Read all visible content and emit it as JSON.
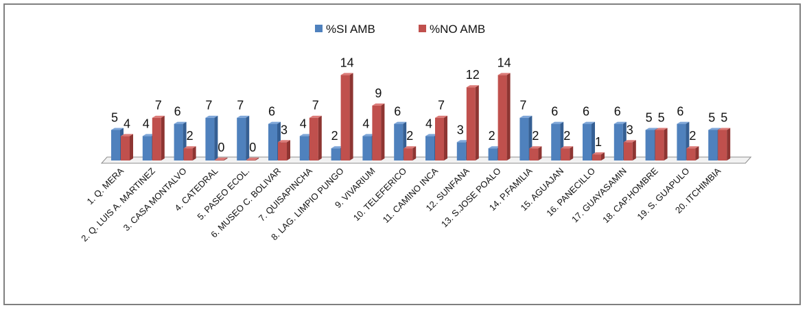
{
  "colors": {
    "si": "#4f81bd",
    "si_dark": "#355f93",
    "si_light": "#7ea6d8",
    "no": "#c0504d",
    "no_dark": "#8e3532",
    "no_light": "#dc7b78",
    "floor": "#f2f2f2",
    "floor_edge": "#8c8c8c"
  },
  "chart_data": {
    "type": "bar",
    "title": "",
    "xlabel": "",
    "ylabel": "",
    "ylim": [
      0,
      14
    ],
    "grid": false,
    "legend": "top",
    "categories": [
      "1. Q. MERA",
      "2. Q. LUIS A. MARTINEZ",
      "3. CASA MONTALVO",
      "4. CATEDRAL",
      "5. PASEO ECOL.",
      "6. MUSEO C. BOLIVAR",
      "7. QUISAPINCHA",
      "8. LAG. LIMPIO PUNGO",
      "9. VIVARIUM",
      "10. TELEFERICO",
      "11. CAMINO INCA",
      "12. SUNFANA",
      "13. S.JOSE POALO",
      "14. P.FAMILIA",
      "15. AGUAJAN",
      "16. PANECILLO",
      "17. GUAYASAMIN",
      "18. CAP.HOMBRE",
      "19. S. GUAPULO",
      "20. ITCHIMBIA"
    ],
    "series": [
      {
        "name": "%SI AMB",
        "values": [
          5,
          4,
          6,
          7,
          7,
          6,
          4,
          2,
          4,
          6,
          4,
          3,
          2,
          7,
          6,
          6,
          6,
          5,
          6,
          5
        ]
      },
      {
        "name": "%NO AMB",
        "values": [
          4,
          7,
          2,
          0,
          0,
          3,
          7,
          14,
          9,
          2,
          7,
          12,
          14,
          2,
          2,
          1,
          3,
          5,
          2,
          5
        ]
      }
    ]
  }
}
